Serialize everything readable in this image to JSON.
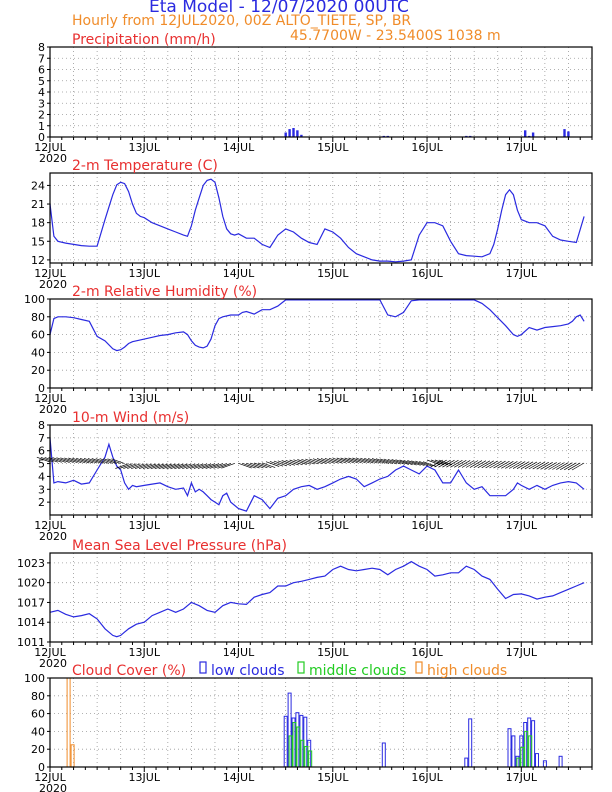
{
  "header": {
    "title": "Eta Model - 12/07/2020 00UTC",
    "subtitle": "Hourly from 12JUL2020, 00Z  ALTO_TIETE, SP, BR",
    "location": "45.7700W - 23.5400S    1038  m",
    "colors": {
      "title": "#2a2ae0",
      "subtitle": "#f08c2a",
      "panel_title": "#e83030"
    }
  },
  "time_axis": {
    "labels": [
      "12JUL",
      "13JUL",
      "14JUL",
      "15JUL",
      "16JUL",
      "17JUL"
    ],
    "year": "2020"
  },
  "chart_data": [
    {
      "type": "bar",
      "title": "Precipitation (mm/h)",
      "ylim": [
        0,
        8
      ],
      "yticks": [
        "0",
        "1",
        "2",
        "3",
        "4",
        "5",
        "6",
        "7",
        "8"
      ],
      "grid": true,
      "color": "#2a2ae0",
      "x_hours": [
        60,
        61,
        62,
        63,
        64,
        85,
        86,
        106,
        107,
        121,
        122,
        123,
        131,
        132
      ],
      "values": [
        0.4,
        0.7,
        0.8,
        0.6,
        0.2,
        0.1,
        0.1,
        0.1,
        0.1,
        0.6,
        0.1,
        0.4,
        0.7,
        0.5
      ]
    },
    {
      "type": "line",
      "title": "2-m Temperature (C)",
      "ylim": [
        11.5,
        26
      ],
      "yticks": [
        "12",
        "15",
        "18",
        "21",
        "24"
      ],
      "grid": true,
      "color": "#2a2ae0",
      "x_hours": [
        0,
        1,
        2,
        4,
        6,
        8,
        10,
        12,
        14,
        15,
        16,
        17,
        18,
        19,
        20,
        21,
        22,
        23,
        24,
        26,
        28,
        30,
        32,
        34,
        35,
        36,
        37,
        38,
        39,
        40,
        41,
        42,
        43,
        44,
        45,
        46,
        47,
        48,
        50,
        52,
        54,
        56,
        58,
        60,
        62,
        64,
        66,
        68,
        70,
        72,
        74,
        76,
        78,
        80,
        82,
        84,
        86,
        88,
        90,
        92,
        94,
        96,
        98,
        100,
        102,
        104,
        106,
        108,
        110,
        112,
        113,
        114,
        115,
        116,
        117,
        118,
        119,
        120,
        122,
        124,
        126,
        128,
        130,
        132,
        134,
        136
      ],
      "values": [
        21,
        15.8,
        15,
        14.7,
        14.5,
        14.3,
        14.2,
        14.2,
        18.5,
        20.5,
        22.5,
        24.1,
        24.5,
        24.3,
        23,
        21,
        19.5,
        19,
        18.8,
        18,
        17.5,
        17,
        16.5,
        16,
        15.8,
        17.5,
        20,
        22,
        24,
        24.8,
        25,
        24.5,
        22,
        19,
        17,
        16.2,
        16,
        16.2,
        15.5,
        15.5,
        14.5,
        14,
        16,
        17,
        16.5,
        15.5,
        14.8,
        14.5,
        17,
        16.5,
        15.5,
        14,
        13,
        12.5,
        12,
        11.8,
        11.8,
        11.7,
        11.8,
        12,
        16,
        18,
        18,
        17.5,
        15,
        13,
        12.7,
        12.6,
        12.5,
        13,
        14.5,
        17,
        20,
        22.5,
        23.3,
        22.5,
        20,
        18.5,
        18,
        18,
        17.5,
        15.8,
        15.2,
        15,
        14.8,
        19
      ]
    },
    {
      "type": "line",
      "title": "2-m Relative Humidity (%)",
      "ylim": [
        0,
        100
      ],
      "yticks": [
        "0",
        "20",
        "40",
        "60",
        "80",
        "100"
      ],
      "grid": true,
      "color": "#2a2ae0",
      "x_hours": [
        0,
        1,
        2,
        4,
        6,
        8,
        10,
        12,
        14,
        16,
        17,
        18,
        19,
        20,
        21,
        22,
        24,
        26,
        28,
        30,
        32,
        34,
        35,
        36,
        37,
        38,
        39,
        40,
        41,
        42,
        43,
        44,
        46,
        48,
        49,
        50,
        52,
        54,
        56,
        58,
        60,
        62,
        64,
        66,
        68,
        70,
        72,
        74,
        76,
        78,
        80,
        82,
        84,
        86,
        88,
        90,
        92,
        94,
        96,
        98,
        100,
        102,
        104,
        106,
        108,
        110,
        112,
        114,
        116,
        118,
        119,
        120,
        122,
        124,
        126,
        128,
        130,
        132,
        133,
        134,
        135,
        136
      ],
      "values": [
        60,
        78,
        80,
        80,
        79,
        77,
        75,
        58,
        53,
        44,
        42,
        43,
        46,
        50,
        52,
        53,
        55,
        57,
        59,
        60,
        62,
        63,
        60,
        53,
        48,
        46,
        45,
        47,
        55,
        70,
        78,
        80,
        82,
        82,
        85,
        86,
        83,
        88,
        88,
        92,
        99,
        99,
        99,
        99,
        99,
        99,
        99,
        99,
        99,
        99,
        99,
        99,
        99,
        82,
        80,
        85,
        98,
        99,
        99,
        99,
        99,
        99,
        99,
        99,
        99,
        95,
        88,
        79,
        70,
        60,
        58,
        60,
        68,
        65,
        68,
        69,
        70,
        72,
        75,
        80,
        82,
        75
      ]
    },
    {
      "type": "line",
      "title": "10-m Wind (m/s)",
      "ylim": [
        1,
        8
      ],
      "yticks": [
        "2",
        "3",
        "4",
        "5",
        "6",
        "7",
        "8"
      ],
      "grid": true,
      "color": "#2a2ae0",
      "x_hours": [
        0,
        1,
        2,
        4,
        6,
        8,
        10,
        12,
        14,
        15,
        16,
        17,
        18,
        19,
        20,
        21,
        22,
        24,
        26,
        28,
        30,
        32,
        34,
        35,
        36,
        37,
        38,
        39,
        40,
        41,
        42,
        43,
        44,
        45,
        46,
        48,
        50,
        52,
        54,
        56,
        58,
        60,
        62,
        64,
        66,
        68,
        70,
        72,
        74,
        76,
        78,
        80,
        82,
        84,
        86,
        88,
        90,
        92,
        94,
        96,
        98,
        100,
        102,
        104,
        106,
        108,
        110,
        112,
        114,
        116,
        118,
        119,
        120,
        122,
        124,
        126,
        128,
        130,
        132,
        134,
        136
      ],
      "values": [
        7,
        3.5,
        3.6,
        3.5,
        3.7,
        3.4,
        3.5,
        4.5,
        5.5,
        6.5,
        5.5,
        4.8,
        4.5,
        3.5,
        3,
        3.3,
        3.2,
        3.3,
        3.4,
        3.5,
        3.2,
        3.0,
        3.1,
        2.5,
        3.5,
        2.8,
        3.0,
        2.8,
        2.5,
        2.2,
        2.0,
        1.8,
        2.5,
        2.7,
        2.0,
        1.5,
        1.3,
        2.5,
        2.2,
        1.5,
        2.3,
        2.5,
        3,
        3.2,
        3.3,
        3.0,
        3.2,
        3.5,
        3.8,
        4.0,
        3.8,
        3.2,
        3.5,
        3.8,
        4.0,
        4.5,
        4.8,
        4.5,
        4.2,
        4.8,
        4.5,
        3.5,
        3.5,
        4.5,
        3.5,
        3.0,
        3.2,
        2.5,
        2.5,
        2.5,
        3.0,
        3.5,
        3.3,
        3.0,
        3.3,
        3.0,
        3.3,
        3.5,
        3.6,
        3.5,
        3.0
      ]
    },
    {
      "type": "line",
      "title": "Mean Sea Level Pressure (hPa)",
      "ylim": [
        1011,
        1024.5
      ],
      "yticks": [
        "1011",
        "1014",
        "1017",
        "1020",
        "1023"
      ],
      "grid": true,
      "color": "#2a2ae0",
      "x_hours": [
        0,
        2,
        4,
        6,
        8,
        10,
        12,
        14,
        16,
        17,
        18,
        19,
        20,
        22,
        24,
        26,
        28,
        30,
        32,
        34,
        36,
        38,
        40,
        42,
        44,
        46,
        48,
        50,
        52,
        54,
        56,
        58,
        60,
        62,
        64,
        66,
        68,
        70,
        72,
        74,
        76,
        78,
        80,
        82,
        84,
        86,
        88,
        90,
        92,
        94,
        96,
        98,
        100,
        102,
        104,
        106,
        108,
        110,
        112,
        114,
        116,
        118,
        120,
        122,
        124,
        126,
        128,
        130,
        132,
        134,
        136
      ],
      "values": [
        1015.5,
        1015.8,
        1015.2,
        1014.8,
        1015,
        1015.3,
        1014.5,
        1013,
        1012,
        1011.8,
        1012,
        1012.5,
        1013,
        1013.7,
        1014,
        1015,
        1015.5,
        1016,
        1015.5,
        1016,
        1017,
        1016.5,
        1015.8,
        1015.5,
        1016.5,
        1017,
        1016.8,
        1016.7,
        1017.8,
        1018.2,
        1018.5,
        1019.5,
        1019.5,
        1020,
        1020.2,
        1020.5,
        1020.8,
        1021,
        1022,
        1022.5,
        1022,
        1021.8,
        1022,
        1022.2,
        1022,
        1021.2,
        1022,
        1022.5,
        1023.2,
        1022.5,
        1022,
        1021,
        1021.2,
        1021.5,
        1021.5,
        1022.5,
        1022,
        1021,
        1020.5,
        1019,
        1017.6,
        1018.2,
        1018.3,
        1018,
        1017.5,
        1017.8,
        1018,
        1018.5,
        1019,
        1019.5,
        1020
      ]
    },
    {
      "type": "bar",
      "title": "Cloud Cover (%)",
      "ylim": [
        0,
        100
      ],
      "yticks": [
        "0",
        "20",
        "40",
        "60",
        "80",
        "100"
      ],
      "grid": true,
      "legend": [
        "low clouds",
        "middle clouds",
        "high clouds"
      ],
      "series": [
        {
          "name": "low clouds",
          "color": "#2a2ae0",
          "x_hours": [
            60,
            61,
            62,
            63,
            64,
            65,
            66,
            85,
            106,
            107,
            117,
            118,
            119,
            120,
            121,
            122,
            123,
            124,
            126,
            130
          ],
          "values": [
            57,
            83,
            55,
            61,
            58,
            56,
            30,
            27,
            10,
            54,
            43,
            35,
            12,
            35,
            50,
            55,
            52,
            15,
            7,
            12
          ]
        },
        {
          "name": "middle clouds",
          "color": "#22cc22",
          "x_hours": [
            61,
            62,
            63,
            64,
            65,
            66,
            119,
            120,
            121,
            122
          ],
          "values": [
            35,
            50,
            45,
            30,
            23,
            18,
            10,
            22,
            40,
            35
          ]
        },
        {
          "name": "high clouds",
          "color": "#f08c2a",
          "x_hours": [
            5,
            6
          ],
          "values": [
            100,
            25
          ]
        }
      ]
    }
  ]
}
